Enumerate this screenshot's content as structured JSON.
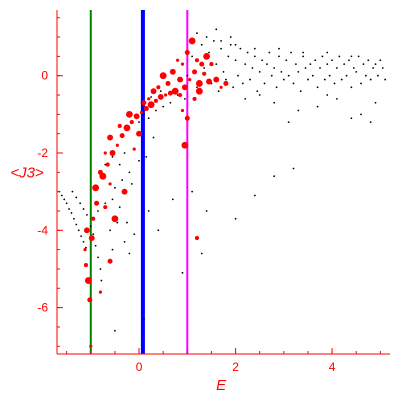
{
  "chart_data": {
    "type": "scatter",
    "title": "",
    "xlabel": "E",
    "ylabel": "<J3>",
    "xlim": [
      -1.7,
      5.2
    ],
    "ylim": [
      -7.2,
      1.7
    ],
    "x_ticks": [
      0,
      2,
      4
    ],
    "y_ticks": [
      -6,
      -4,
      -2,
      0
    ],
    "grid": false,
    "legend": "none",
    "colors": {
      "axis": "#ff0000",
      "small_dots": "#000000",
      "large_dots": "#ff0000",
      "vline_green": "#008000",
      "vline_blue": "#0000ff",
      "vline_magenta": "#ff00ff"
    },
    "vertical_lines": [
      {
        "x": -1.0,
        "color": "#008000",
        "width": "thin"
      },
      {
        "x": 0.08,
        "color": "#0000ff",
        "width": "thick"
      },
      {
        "x": 1.0,
        "color": "#ff00ff",
        "width": "thin"
      }
    ],
    "series": [
      {
        "style": "small black dots",
        "points": [
          [
            -1.65,
            -3.0
          ],
          [
            -1.6,
            -3.1
          ],
          [
            -1.55,
            -3.2
          ],
          [
            -1.5,
            -3.3
          ],
          [
            -1.45,
            -3.45
          ],
          [
            -1.4,
            -3.55
          ],
          [
            -1.35,
            -3.7
          ],
          [
            -1.3,
            -3.85
          ],
          [
            -1.25,
            -4.0
          ],
          [
            -1.2,
            -4.15
          ],
          [
            -1.15,
            -4.3
          ],
          [
            -1.1,
            -4.45
          ],
          [
            -1.38,
            -3.0
          ],
          [
            -1.3,
            -3.15
          ],
          [
            -1.22,
            -3.3
          ],
          [
            -1.15,
            -3.45
          ],
          [
            -1.08,
            -3.6
          ],
          [
            -1.0,
            -3.9
          ],
          [
            -0.95,
            -4.1
          ],
          [
            -0.9,
            -4.4
          ],
          [
            -0.85,
            -4.7
          ],
          [
            -0.8,
            -5.0
          ],
          [
            -0.78,
            -5.3
          ],
          [
            -0.85,
            -3.5
          ],
          [
            -0.7,
            -3.3
          ],
          [
            -0.55,
            -3.2
          ],
          [
            -0.4,
            -3.4
          ],
          [
            -0.25,
            -3.8
          ],
          [
            -0.1,
            -4.1
          ],
          [
            -0.3,
            -4.3
          ],
          [
            -0.55,
            -4.5
          ],
          [
            -0.2,
            -4.6
          ],
          [
            -0.45,
            -3.8
          ],
          [
            -0.6,
            -4.0
          ],
          [
            -0.7,
            -2.3
          ],
          [
            -0.55,
            -2.1
          ],
          [
            -0.4,
            -2.3
          ],
          [
            -0.3,
            -2.0
          ],
          [
            -0.2,
            -2.5
          ],
          [
            -0.1,
            -1.9
          ],
          [
            0.0,
            -2.2
          ],
          [
            0.15,
            -2.1
          ],
          [
            0.3,
            -1.6
          ],
          [
            -0.15,
            -2.8
          ],
          [
            -0.35,
            -2.7
          ],
          [
            -0.5,
            -2.9
          ],
          [
            0.0,
            -1.2
          ],
          [
            0.1,
            -1.0
          ],
          [
            0.2,
            -1.1
          ],
          [
            0.35,
            -0.9
          ],
          [
            0.5,
            -0.8
          ],
          [
            0.65,
            -0.7
          ],
          [
            0.8,
            -0.5
          ],
          [
            0.95,
            -0.6
          ],
          [
            0.05,
            -0.7
          ],
          [
            0.25,
            -0.55
          ],
          [
            0.45,
            -0.4
          ],
          [
            0.2,
            -3.5
          ],
          [
            0.4,
            -4.0
          ],
          [
            0.7,
            -3.2
          ],
          [
            0.9,
            -5.1
          ],
          [
            1.1,
            -3.0
          ],
          [
            1.4,
            -3.5
          ],
          [
            1.3,
            -4.6
          ],
          [
            -0.5,
            -6.6
          ],
          [
            0.1,
            -6.3
          ],
          [
            2.8,
            -2.6
          ],
          [
            2.4,
            -3.1
          ],
          [
            2.0,
            -3.7
          ],
          [
            3.2,
            -2.4
          ],
          [
            1.0,
            0.0
          ],
          [
            1.1,
            0.5
          ],
          [
            1.2,
            -0.3
          ],
          [
            1.3,
            0.8
          ],
          [
            1.35,
            0.2
          ],
          [
            1.45,
            0.6
          ],
          [
            1.5,
            -0.2
          ],
          [
            1.55,
            0.9
          ],
          [
            1.6,
            0.3
          ],
          [
            1.65,
            -0.4
          ],
          [
            1.7,
            0.7
          ],
          [
            1.75,
            0.1
          ],
          [
            1.8,
            -0.1
          ],
          [
            1.85,
            0.5
          ],
          [
            1.9,
            0.8
          ],
          [
            1.95,
            -0.3
          ],
          [
            2.0,
            0.4
          ],
          [
            2.05,
            0.0
          ],
          [
            2.1,
            0.7
          ],
          [
            2.15,
            -0.2
          ],
          [
            2.2,
            0.3
          ],
          [
            2.25,
            0.6
          ],
          [
            2.3,
            -0.1
          ],
          [
            2.35,
            0.2
          ],
          [
            2.4,
            0.5
          ],
          [
            2.45,
            -0.4
          ],
          [
            2.5,
            0.1
          ],
          [
            2.55,
            0.4
          ],
          [
            2.6,
            -0.2
          ],
          [
            2.65,
            0.3
          ],
          [
            2.7,
            0.6
          ],
          [
            2.75,
            0.0
          ],
          [
            2.8,
            0.2
          ],
          [
            2.85,
            -0.3
          ],
          [
            2.9,
            0.5
          ],
          [
            2.95,
            0.1
          ],
          [
            3.0,
            -0.1
          ],
          [
            3.05,
            0.4
          ],
          [
            3.1,
            0.0
          ],
          [
            3.15,
            0.6
          ],
          [
            3.2,
            -0.2
          ],
          [
            3.25,
            0.3
          ],
          [
            3.3,
            0.1
          ],
          [
            3.35,
            -0.4
          ],
          [
            3.4,
            0.5
          ],
          [
            3.45,
            0.2
          ],
          [
            3.5,
            -0.1
          ],
          [
            3.55,
            0.3
          ],
          [
            3.6,
            0.0
          ],
          [
            3.65,
            0.4
          ],
          [
            3.7,
            -0.3
          ],
          [
            3.75,
            0.2
          ],
          [
            3.8,
            0.5
          ],
          [
            3.85,
            -0.1
          ],
          [
            3.9,
            0.3
          ],
          [
            3.95,
            0.0
          ],
          [
            4.0,
            0.4
          ],
          [
            4.05,
            -0.2
          ],
          [
            4.1,
            0.2
          ],
          [
            4.15,
            0.5
          ],
          [
            4.2,
            -0.1
          ],
          [
            4.25,
            0.3
          ],
          [
            4.3,
            0.0
          ],
          [
            4.35,
            0.4
          ],
          [
            4.4,
            -0.3
          ],
          [
            4.45,
            0.2
          ],
          [
            4.5,
            0.1
          ],
          [
            4.55,
            0.5
          ],
          [
            4.6,
            -0.2
          ],
          [
            4.65,
            0.3
          ],
          [
            4.7,
            0.0
          ],
          [
            4.75,
            0.4
          ],
          [
            4.8,
            -0.1
          ],
          [
            4.85,
            0.2
          ],
          [
            4.9,
            0.3
          ],
          [
            4.95,
            0.0
          ],
          [
            5.0,
            0.4
          ],
          [
            5.05,
            0.2
          ],
          [
            5.1,
            -0.1
          ],
          [
            2.2,
            -0.6
          ],
          [
            2.8,
            -0.7
          ],
          [
            3.3,
            -0.9
          ],
          [
            3.7,
            -0.8
          ],
          [
            4.1,
            -0.6
          ],
          [
            4.6,
            -1.0
          ],
          [
            4.9,
            -0.7
          ],
          [
            3.1,
            -1.2
          ],
          [
            4.4,
            -1.1
          ],
          [
            2.5,
            -0.5
          ],
          [
            3.9,
            -0.5
          ],
          [
            4.8,
            -1.2
          ],
          [
            1.2,
            1.1
          ],
          [
            1.4,
            1.0
          ],
          [
            1.7,
            0.9
          ],
          [
            2.0,
            0.8
          ],
          [
            2.4,
            0.7
          ],
          [
            2.9,
            0.7
          ],
          [
            3.4,
            0.6
          ],
          [
            3.9,
            0.6
          ],
          [
            4.4,
            0.5
          ],
          [
            1.6,
            1.2
          ],
          [
            1.9,
            1.0
          ]
        ]
      },
      {
        "style": "large red dots",
        "points": [
          [
            -1.0,
            -7.0
          ],
          [
            -1.02,
            -5.8
          ],
          [
            -1.05,
            -5.3
          ],
          [
            -1.1,
            -4.9
          ],
          [
            -0.98,
            -4.2
          ],
          [
            -1.12,
            -4.5
          ],
          [
            -0.88,
            -3.3
          ],
          [
            -0.75,
            -2.6
          ],
          [
            -0.65,
            -2.3
          ],
          [
            -0.55,
            -2.0
          ],
          [
            -0.45,
            -1.8
          ],
          [
            -0.35,
            -1.55
          ],
          [
            -0.25,
            -1.35
          ],
          [
            -0.15,
            -1.2
          ],
          [
            -0.05,
            -1.05
          ],
          [
            0.05,
            -0.95
          ],
          [
            0.15,
            -0.85
          ],
          [
            0.25,
            -0.75
          ],
          [
            0.35,
            -0.65
          ],
          [
            0.45,
            -0.55
          ],
          [
            0.55,
            -0.5
          ],
          [
            0.65,
            -0.45
          ],
          [
            0.75,
            -0.4
          ],
          [
            0.85,
            -0.5
          ],
          [
            0.95,
            -0.3
          ],
          [
            1.05,
            -0.1
          ],
          [
            1.15,
            0.1
          ],
          [
            1.25,
            -0.2
          ],
          [
            1.35,
            0.05
          ],
          [
            1.45,
            -0.15
          ],
          [
            0.9,
            0.3
          ],
          [
            1.0,
            0.6
          ],
          [
            1.1,
            0.9
          ],
          [
            1.2,
            0.4
          ],
          [
            0.7,
            0.1
          ],
          [
            0.8,
            0.4
          ],
          [
            0.6,
            -0.2
          ],
          [
            0.5,
            0.0
          ],
          [
            0.4,
            -0.3
          ],
          [
            0.3,
            -0.4
          ],
          [
            0.2,
            -0.6
          ],
          [
            0.1,
            -0.7
          ],
          [
            -0.2,
            -1.0
          ],
          [
            -0.4,
            -1.3
          ],
          [
            -0.6,
            -1.6
          ],
          [
            -0.7,
            -2.0
          ],
          [
            -0.8,
            -2.5
          ],
          [
            -0.9,
            -2.9
          ],
          [
            -0.95,
            -3.7
          ],
          [
            -1.08,
            -4.0
          ],
          [
            -0.8,
            -5.6
          ],
          [
            -0.6,
            -4.8
          ],
          [
            -0.5,
            -3.7
          ],
          [
            -0.7,
            -3.4
          ],
          [
            -0.3,
            -3.0
          ],
          [
            -0.6,
            -2.8
          ],
          [
            1.0,
            -1.1
          ],
          [
            0.95,
            -1.8
          ],
          [
            1.2,
            -4.2
          ],
          [
            0.0,
            -1.5
          ],
          [
            -0.1,
            -1.9
          ],
          [
            1.3,
            0.3
          ],
          [
            1.4,
            0.5
          ],
          [
            1.5,
            0.3
          ],
          [
            1.6,
            -0.1
          ],
          [
            1.7,
            -0.3
          ],
          [
            1.8,
            -0.2
          ],
          [
            1.25,
            -0.4
          ],
          [
            1.15,
            -0.6
          ],
          [
            0.85,
            -0.1
          ],
          [
            0.9,
            -0.9
          ]
        ]
      }
    ]
  }
}
